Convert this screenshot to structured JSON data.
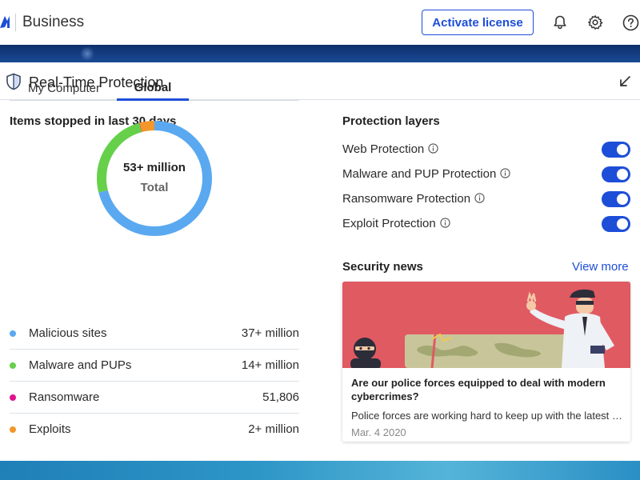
{
  "header": {
    "app_title": "Business",
    "activate_label": "Activate license",
    "icons": [
      "notification-bell-icon",
      "settings-gear-icon",
      "help-icon"
    ]
  },
  "panel": {
    "title": "Real-Time Protection",
    "icon": "shield-icon"
  },
  "items_stopped": {
    "title": "Items stopped in last 30 days",
    "tabs": [
      {
        "label": "My Computer",
        "active": false
      },
      {
        "label": "Global",
        "active": true
      }
    ],
    "total_value": "53+ million",
    "total_label": "Total",
    "legend": [
      {
        "label": "Malicious sites",
        "value": "37+ million",
        "color": "#5aa9f0"
      },
      {
        "label": "Malware and PUPs",
        "value": "14+ million",
        "color": "#66d04a"
      },
      {
        "label": "Ransomware",
        "value": "51,806",
        "color": "#e0138c"
      },
      {
        "label": "Exploits",
        "value": "2+ million",
        "color": "#f3962b"
      }
    ]
  },
  "protection_layers": {
    "title": "Protection layers",
    "items": [
      {
        "label": "Web Protection",
        "enabled": true
      },
      {
        "label": "Malware and PUP Protection",
        "enabled": true
      },
      {
        "label": "Ransomware Protection",
        "enabled": true
      },
      {
        "label": "Exploit Protection",
        "enabled": true
      }
    ]
  },
  "security_news": {
    "title": "Security news",
    "view_more": "View more",
    "article": {
      "title": "Are our police forces equipped to deal with modern cybercrimes?",
      "excerpt": "Police forces are working hard to keep up with the latest developments in cybercrime",
      "date": "Mar. 4 2020"
    }
  },
  "colors": {
    "accent": "#1d4ed8",
    "banner": "#163f86",
    "news_image_bg": "#e05a62"
  }
}
